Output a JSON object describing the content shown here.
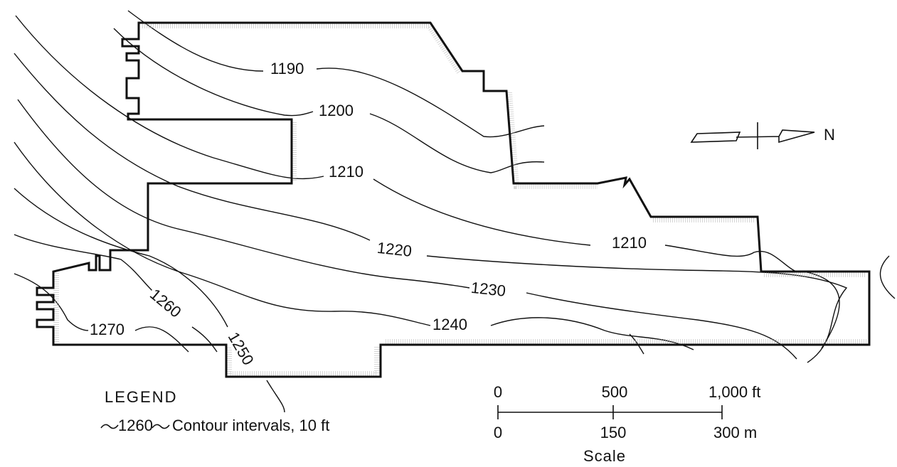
{
  "contours": {
    "labels": [
      "1190",
      "1200",
      "1210",
      "1210",
      "1220",
      "1230",
      "1240",
      "1250",
      "1260",
      "1270"
    ]
  },
  "north": "N",
  "legend": {
    "title": "LEGEND",
    "sample": "1260",
    "text": "Contour intervals, 10 ft"
  },
  "scale": {
    "feet": [
      "0",
      "500",
      "1,000 ft"
    ],
    "meters": [
      "0",
      "150",
      "300 m"
    ],
    "title": "Scale"
  }
}
